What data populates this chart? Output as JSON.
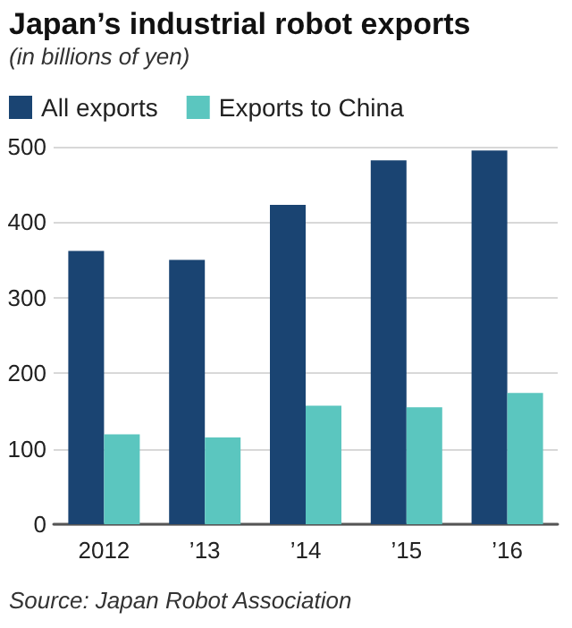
{
  "chart_data": {
    "type": "bar",
    "title": "Japan’s industrial robot exports",
    "subtitle": "(in billions of yen)",
    "categories": [
      "2012",
      "’13",
      "’14",
      "’15",
      "’16"
    ],
    "series": [
      {
        "name": "All exports",
        "color": "#1a4472",
        "values": [
          362,
          350,
          423,
          482,
          495
        ]
      },
      {
        "name": "Exports to China",
        "color": "#5bc6bf",
        "values": [
          119,
          115,
          157,
          155,
          174
        ]
      }
    ],
    "ylim": [
      0,
      500
    ],
    "yticks": [
      0,
      100,
      200,
      300,
      400,
      500
    ],
    "grid": "y",
    "legend": "top left",
    "annotations": [
      "Source: Japan Robot Association"
    ]
  }
}
